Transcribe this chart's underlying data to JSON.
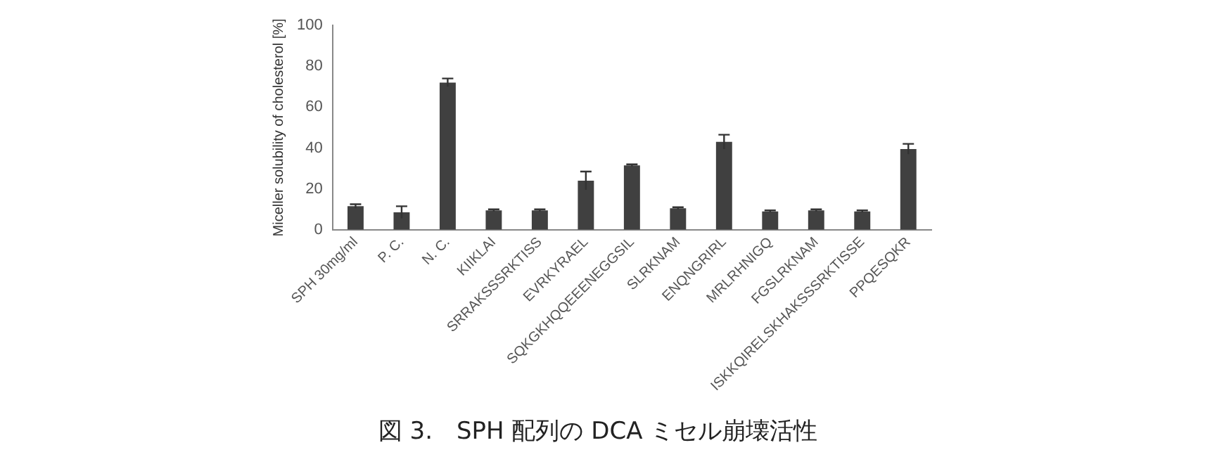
{
  "chart_data": {
    "type": "bar",
    "title": "図 3.　SPH 配列の DCA ミセル崩壊活性",
    "ylabel": "Miceller solubility of cholesterol [%]",
    "categories": [
      "SPH 30mg/ml",
      "P. C.",
      "N. C.",
      "KIIKLAI",
      "SRRAKSSSRKTISS",
      "EVRKYRAEL",
      "SQKGKHQQEEENEGGSIL",
      "SLRKNAM",
      "ENQNGRIRL",
      "MRLRHNIGQ",
      "FGSLRKNAM",
      "ISKKQIRELSKHAKSSSRKTISSE",
      "PPQESQKR"
    ],
    "values": [
      11.5,
      8.5,
      72,
      9.5,
      9.5,
      24,
      31.5,
      10.5,
      43,
      9,
      9.5,
      9,
      39.5
    ],
    "errors": [
      1,
      3,
      2,
      0.5,
      0.5,
      4.5,
      0.5,
      0.5,
      3.5,
      0.5,
      0.5,
      0.5,
      2.5
    ],
    "color": "#404040",
    "ylim": [
      0,
      100
    ],
    "yticks": [
      0,
      20,
      40,
      60,
      80,
      100
    ],
    "grid": false,
    "legend": false
  }
}
